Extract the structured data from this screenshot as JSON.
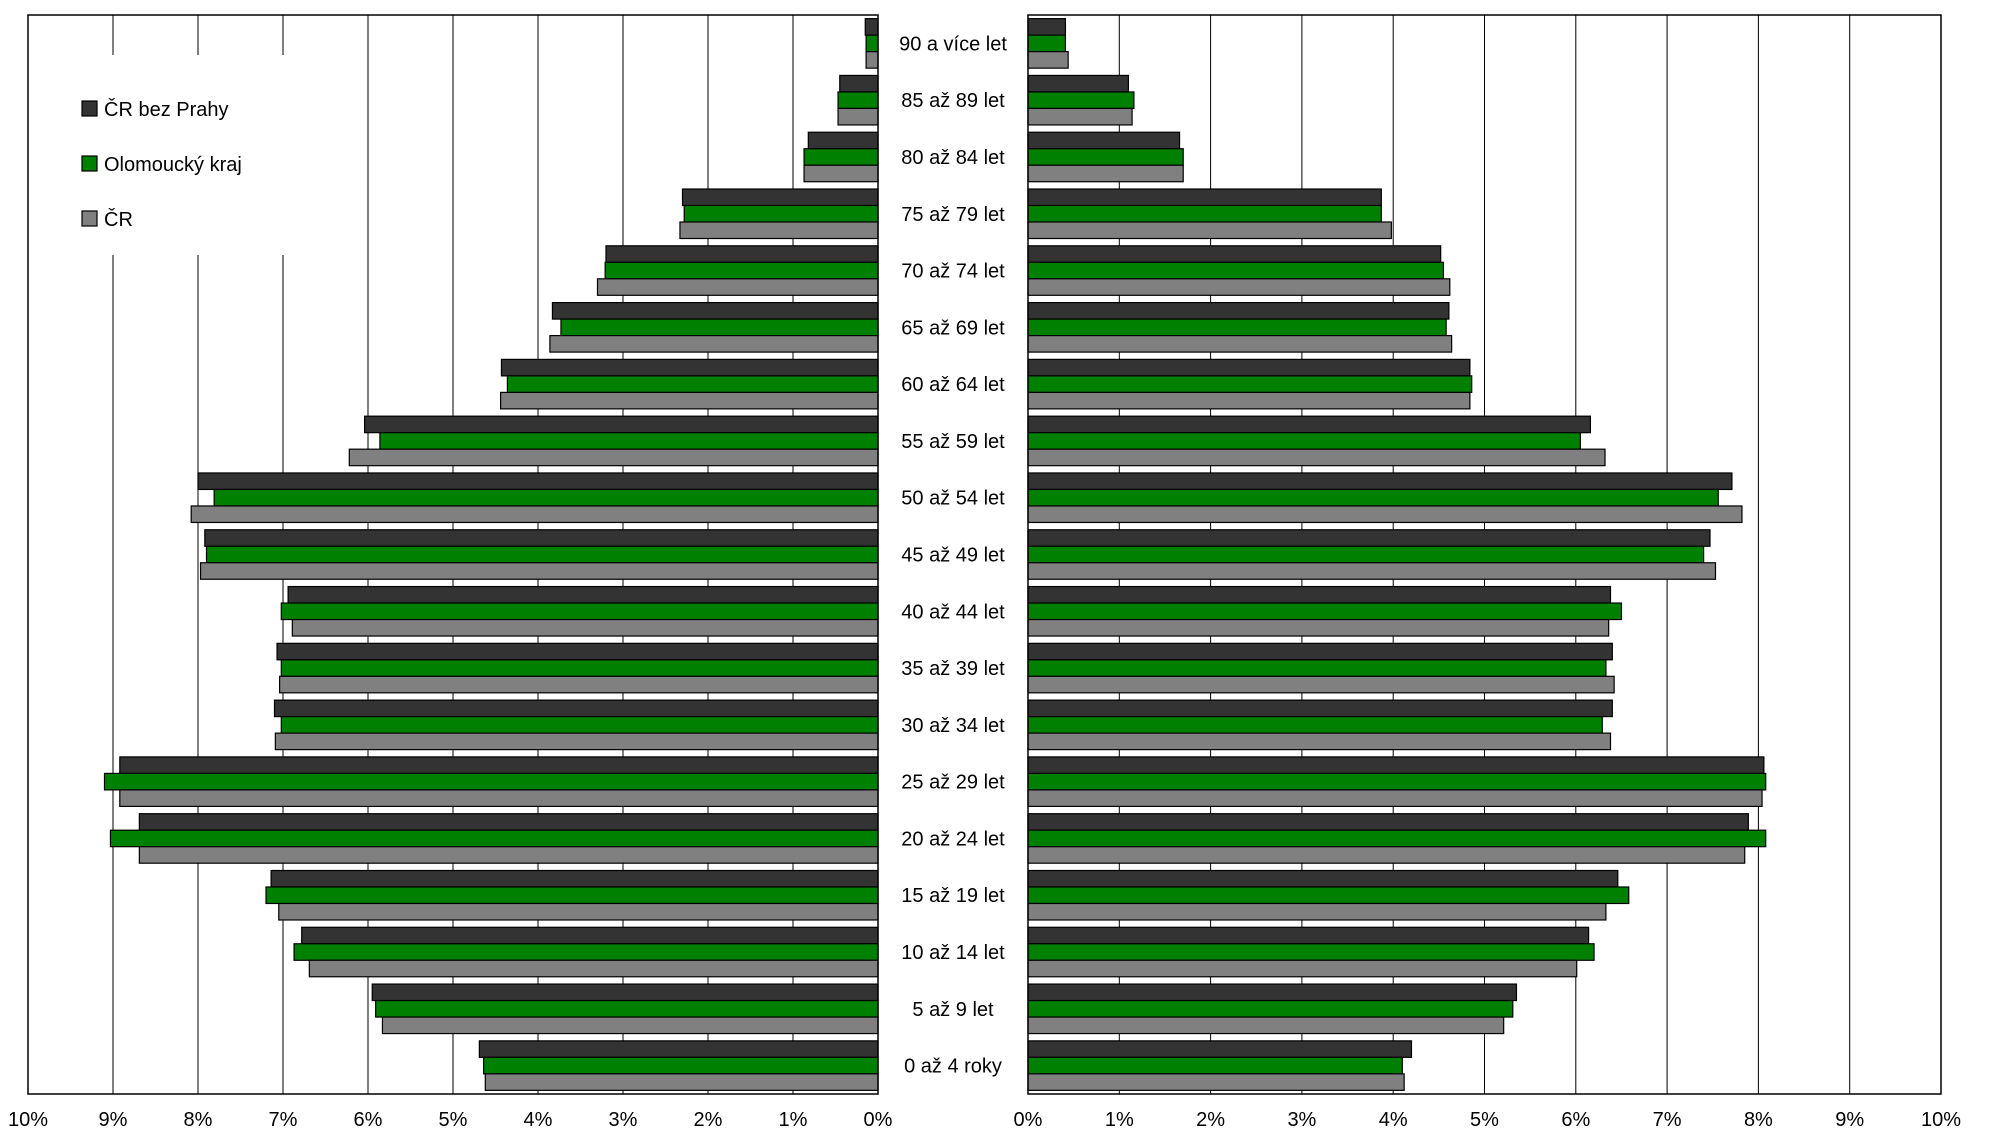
{
  "chart_data": {
    "type": "bar",
    "orientation": "horizontal",
    "layout": "population-pyramid",
    "categories": [
      "90 a více let",
      "85 až 89 let",
      "80 až 84 let",
      "75 až 79 let",
      "70 až 74 let",
      "65 až 69 let",
      "60 až 64 let",
      "55 až 59 let",
      "50 až 54 let",
      "45 až 49 let",
      "40 až 44 let",
      "35 až 39 let",
      "30 až 34 let",
      "25 až 29 let",
      "20 až 24 let",
      "15 až 19 let",
      "10 až 14 let",
      "5 až 9 let",
      "0 až 4 roky"
    ],
    "series": [
      {
        "name": "ČR bez Prahy",
        "color": "#333333",
        "left": [
          0.15,
          0.45,
          0.82,
          2.3,
          3.2,
          3.83,
          4.43,
          6.04,
          8.0,
          7.92,
          6.94,
          7.07,
          7.1,
          8.92,
          8.69,
          7.14,
          6.78,
          5.95,
          4.69
        ],
        "right": [
          0.41,
          1.1,
          1.66,
          3.87,
          4.52,
          4.61,
          4.84,
          6.16,
          7.71,
          7.47,
          6.38,
          6.4,
          6.4,
          8.06,
          7.89,
          6.46,
          6.14,
          5.35,
          4.2
        ]
      },
      {
        "name": "Olomoucký kraj",
        "color": "#008000",
        "left": [
          0.14,
          0.47,
          0.87,
          2.28,
          3.21,
          3.73,
          4.36,
          5.86,
          7.81,
          7.9,
          7.02,
          7.02,
          7.02,
          9.1,
          9.03,
          7.2,
          6.87,
          5.91,
          4.64
        ],
        "right": [
          0.41,
          1.16,
          1.7,
          3.87,
          4.55,
          4.58,
          4.86,
          6.05,
          7.56,
          7.4,
          6.5,
          6.33,
          6.29,
          8.08,
          8.08,
          6.58,
          6.2,
          5.31,
          4.1
        ]
      },
      {
        "name": "ČR",
        "color": "#808080",
        "left": [
          0.14,
          0.47,
          0.87,
          2.33,
          3.3,
          3.86,
          4.44,
          6.22,
          8.08,
          7.97,
          6.89,
          7.04,
          7.09,
          8.92,
          8.69,
          7.05,
          6.69,
          5.83,
          4.62
        ],
        "right": [
          0.44,
          1.14,
          1.7,
          3.98,
          4.62,
          4.64,
          4.84,
          6.32,
          7.82,
          7.53,
          6.36,
          6.42,
          6.38,
          8.04,
          7.85,
          6.33,
          6.01,
          5.21,
          4.12
        ]
      }
    ],
    "left_axis": {
      "ticks": [
        "10%",
        "9%",
        "8%",
        "7%",
        "6%",
        "5%",
        "4%",
        "3%",
        "2%",
        "1%",
        "0%"
      ],
      "range": [
        0,
        10
      ],
      "reversed": true
    },
    "right_axis": {
      "ticks": [
        "0%",
        "1%",
        "2%",
        "3%",
        "4%",
        "5%",
        "6%",
        "7%",
        "8%",
        "9%",
        "10%"
      ],
      "range": [
        0,
        10
      ]
    },
    "grid": true,
    "legend": {
      "position": "top-left",
      "items": [
        "ČR bez Prahy",
        "Olomoucký kraj",
        "ČR"
      ]
    }
  }
}
